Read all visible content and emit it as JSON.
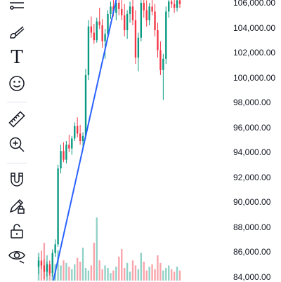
{
  "toolbar": {
    "tools": [
      {
        "name": "fib-retracement-icon"
      },
      {
        "name": "brush-icon"
      },
      {
        "name": "text-icon",
        "glyph": "T"
      },
      {
        "name": "emoji-icon"
      },
      {
        "name": "ruler-icon"
      },
      {
        "name": "zoom-in-icon"
      },
      {
        "name": "magnet-icon"
      },
      {
        "name": "lock-drawings-icon"
      },
      {
        "name": "unlock-icon"
      },
      {
        "name": "eye-hide-icon"
      }
    ]
  },
  "price_axis": {
    "labels": [
      "106,000.00",
      "104,000.00",
      "102,000.00",
      "100,000.00",
      "98,000.00",
      "96,000.00",
      "94,000.00",
      "92,000.00",
      "90,000.00",
      "88,000.00",
      "86,000.00",
      "84,000.00"
    ]
  },
  "colors": {
    "up": "#089981",
    "down": "#f23645",
    "trendline": "#2962ff",
    "text": "#131722"
  },
  "chart_data": {
    "type": "candlestick",
    "ylim": [
      83700,
      106400
    ],
    "trendline": {
      "from": 83700,
      "to": 106400
    },
    "candles": [
      [
        84800,
        85600,
        84200,
        85300
      ],
      [
        85300,
        86100,
        84600,
        84900
      ],
      [
        84900,
        85400,
        83800,
        84400
      ],
      [
        84400,
        85200,
        84000,
        85000
      ],
      [
        85000,
        85300,
        84100,
        84300
      ],
      [
        84300,
        86200,
        84000,
        85900
      ],
      [
        85900,
        87000,
        85600,
        86600
      ],
      [
        86600,
        93000,
        86400,
        92700
      ],
      [
        92700,
        94600,
        92300,
        94100
      ],
      [
        94100,
        94800,
        93200,
        93400
      ],
      [
        93400,
        94900,
        93100,
        94600
      ],
      [
        94600,
        95400,
        94000,
        94300
      ],
      [
        94300,
        95300,
        93800,
        95100
      ],
      [
        95100,
        96400,
        94900,
        96100
      ],
      [
        96100,
        96800,
        95200,
        95500
      ],
      [
        95500,
        96200,
        94600,
        94900
      ],
      [
        94900,
        95600,
        94200,
        95300
      ],
      [
        95300,
        100700,
        95100,
        100200
      ],
      [
        100200,
        104600,
        99800,
        104100
      ],
      [
        104100,
        104900,
        103200,
        103600
      ],
      [
        103600,
        104300,
        102700,
        103000
      ],
      [
        103000,
        104800,
        102800,
        104500
      ],
      [
        104500,
        105600,
        103900,
        104200
      ],
      [
        104200,
        104700,
        102400,
        102900
      ],
      [
        102900,
        103900,
        101500,
        103500
      ],
      [
        103500,
        105400,
        103200,
        105100
      ],
      [
        105100,
        106100,
        104700,
        105700
      ],
      [
        105700,
        106400,
        104900,
        105200
      ],
      [
        105200,
        106400,
        104600,
        106000
      ],
      [
        106000,
        106400,
        105000,
        105500
      ],
      [
        105500,
        106300,
        104600,
        105000
      ],
      [
        105000,
        105900,
        103300,
        103800
      ],
      [
        103800,
        105400,
        103100,
        105100
      ],
      [
        105100,
        106100,
        104400,
        105700
      ],
      [
        105700,
        106400,
        104200,
        104600
      ],
      [
        104600,
        105400,
        101100,
        101600
      ],
      [
        101600,
        103600,
        100500,
        103200
      ],
      [
        103200,
        106300,
        102900,
        106000
      ],
      [
        106000,
        106400,
        104800,
        105400
      ],
      [
        105400,
        106200,
        104100,
        104600
      ],
      [
        104600,
        106000,
        104200,
        105700
      ],
      [
        105700,
        106400,
        105000,
        105300
      ],
      [
        105300,
        105900,
        103300,
        103800
      ],
      [
        103800,
        104400,
        101600,
        102200
      ],
      [
        102200,
        102900,
        100200,
        100600
      ],
      [
        100600,
        101900,
        98200,
        101500
      ],
      [
        101500,
        105700,
        101100,
        105300
      ],
      [
        105300,
        106400,
        104800,
        106100
      ],
      [
        106100,
        106400,
        105600,
        105900
      ],
      [
        105900,
        106300,
        105200,
        105600
      ],
      [
        105600,
        106400,
        105300,
        106200
      ],
      [
        106200,
        106400,
        105600,
        105900
      ]
    ],
    "volumes": [
      2.2,
      1.5,
      3.0,
      2.0,
      1.0,
      0.8,
      1.3,
      2.4,
      1.2,
      1.6,
      1.4,
      1.1,
      0.9,
      1.3,
      1.8,
      1.5,
      2.6,
      1.0,
      0.8,
      1.2,
      3.0,
      5.0,
      1.6,
      0.9,
      1.2,
      1.0,
      0.6,
      0.8,
      1.1,
      1.9,
      2.5,
      1.0,
      1.4,
      0.7,
      1.6,
      1.2,
      0.9,
      2.2,
      1.5,
      0.8,
      1.1,
      1.3,
      0.9,
      2.0,
      1.4,
      0.8,
      1.0,
      1.2,
      0.9,
      0.7,
      1.1,
      0.8
    ]
  }
}
